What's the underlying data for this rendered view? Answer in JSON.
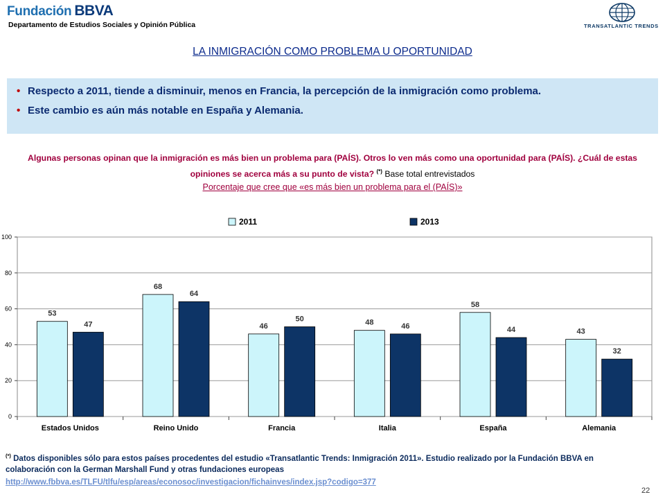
{
  "header": {
    "logo_left_part1": "Fundación",
    "logo_left_part2": "BBVA",
    "department": "Departamento de Estudios Sociales y Opinión Pública",
    "logo_right": "TRANSATLANTIC TRENDS"
  },
  "title": "LA INMIGRACIÓN COMO PROBLEMA U OPORTUNIDAD",
  "bullets": [
    "Respecto a 2011, tiende a disminuir, menos en Francia, la percepción de la inmigración como problema.",
    "Este cambio es aún más notable en España y Alemania."
  ],
  "question": {
    "text": "Algunas personas opinan que la inmigración es más bien un problema para (PAÍS). Otros lo ven más como una oportunidad para (PAÍS). ¿Cuál de estas opiniones se acerca más a su punto de vista?",
    "note_mark": "(*)",
    "base": "Base total entrevistados"
  },
  "subtitle": "Porcentaje que cree que «es más bien un problema para el (PAÍS)»",
  "chart_data": {
    "type": "bar",
    "categories": [
      "Estados Unidos",
      "Reino Unido",
      "Francia",
      "Italia",
      "España",
      "Alemania"
    ],
    "series": [
      {
        "name": "2011",
        "values": [
          53,
          68,
          46,
          48,
          58,
          43
        ],
        "color": "#ccf5fb"
      },
      {
        "name": "2013",
        "values": [
          47,
          64,
          50,
          46,
          44,
          32
        ],
        "color": "#0d3466"
      }
    ],
    "ylim": [
      0,
      100
    ],
    "yticks": [
      "0",
      "20",
      "40",
      "60",
      "80",
      "100"
    ],
    "grid": true,
    "legend": "top-center"
  },
  "footnote": {
    "mark": "(*)",
    "text": "Datos disponibles sólo para estos países procedentes del estudio «Transatlantic Trends: Inmigración 2011». Estudio realizado por la Fundación BBVA en colaboración con la German Marshall Fund y otras fundaciones europeas"
  },
  "link": "http://www.fbbva.es/TLFU/tlfu/esp/areas/econosoc/investigacion/fichainves/index.jsp?codigo=377",
  "page_number": "22"
}
